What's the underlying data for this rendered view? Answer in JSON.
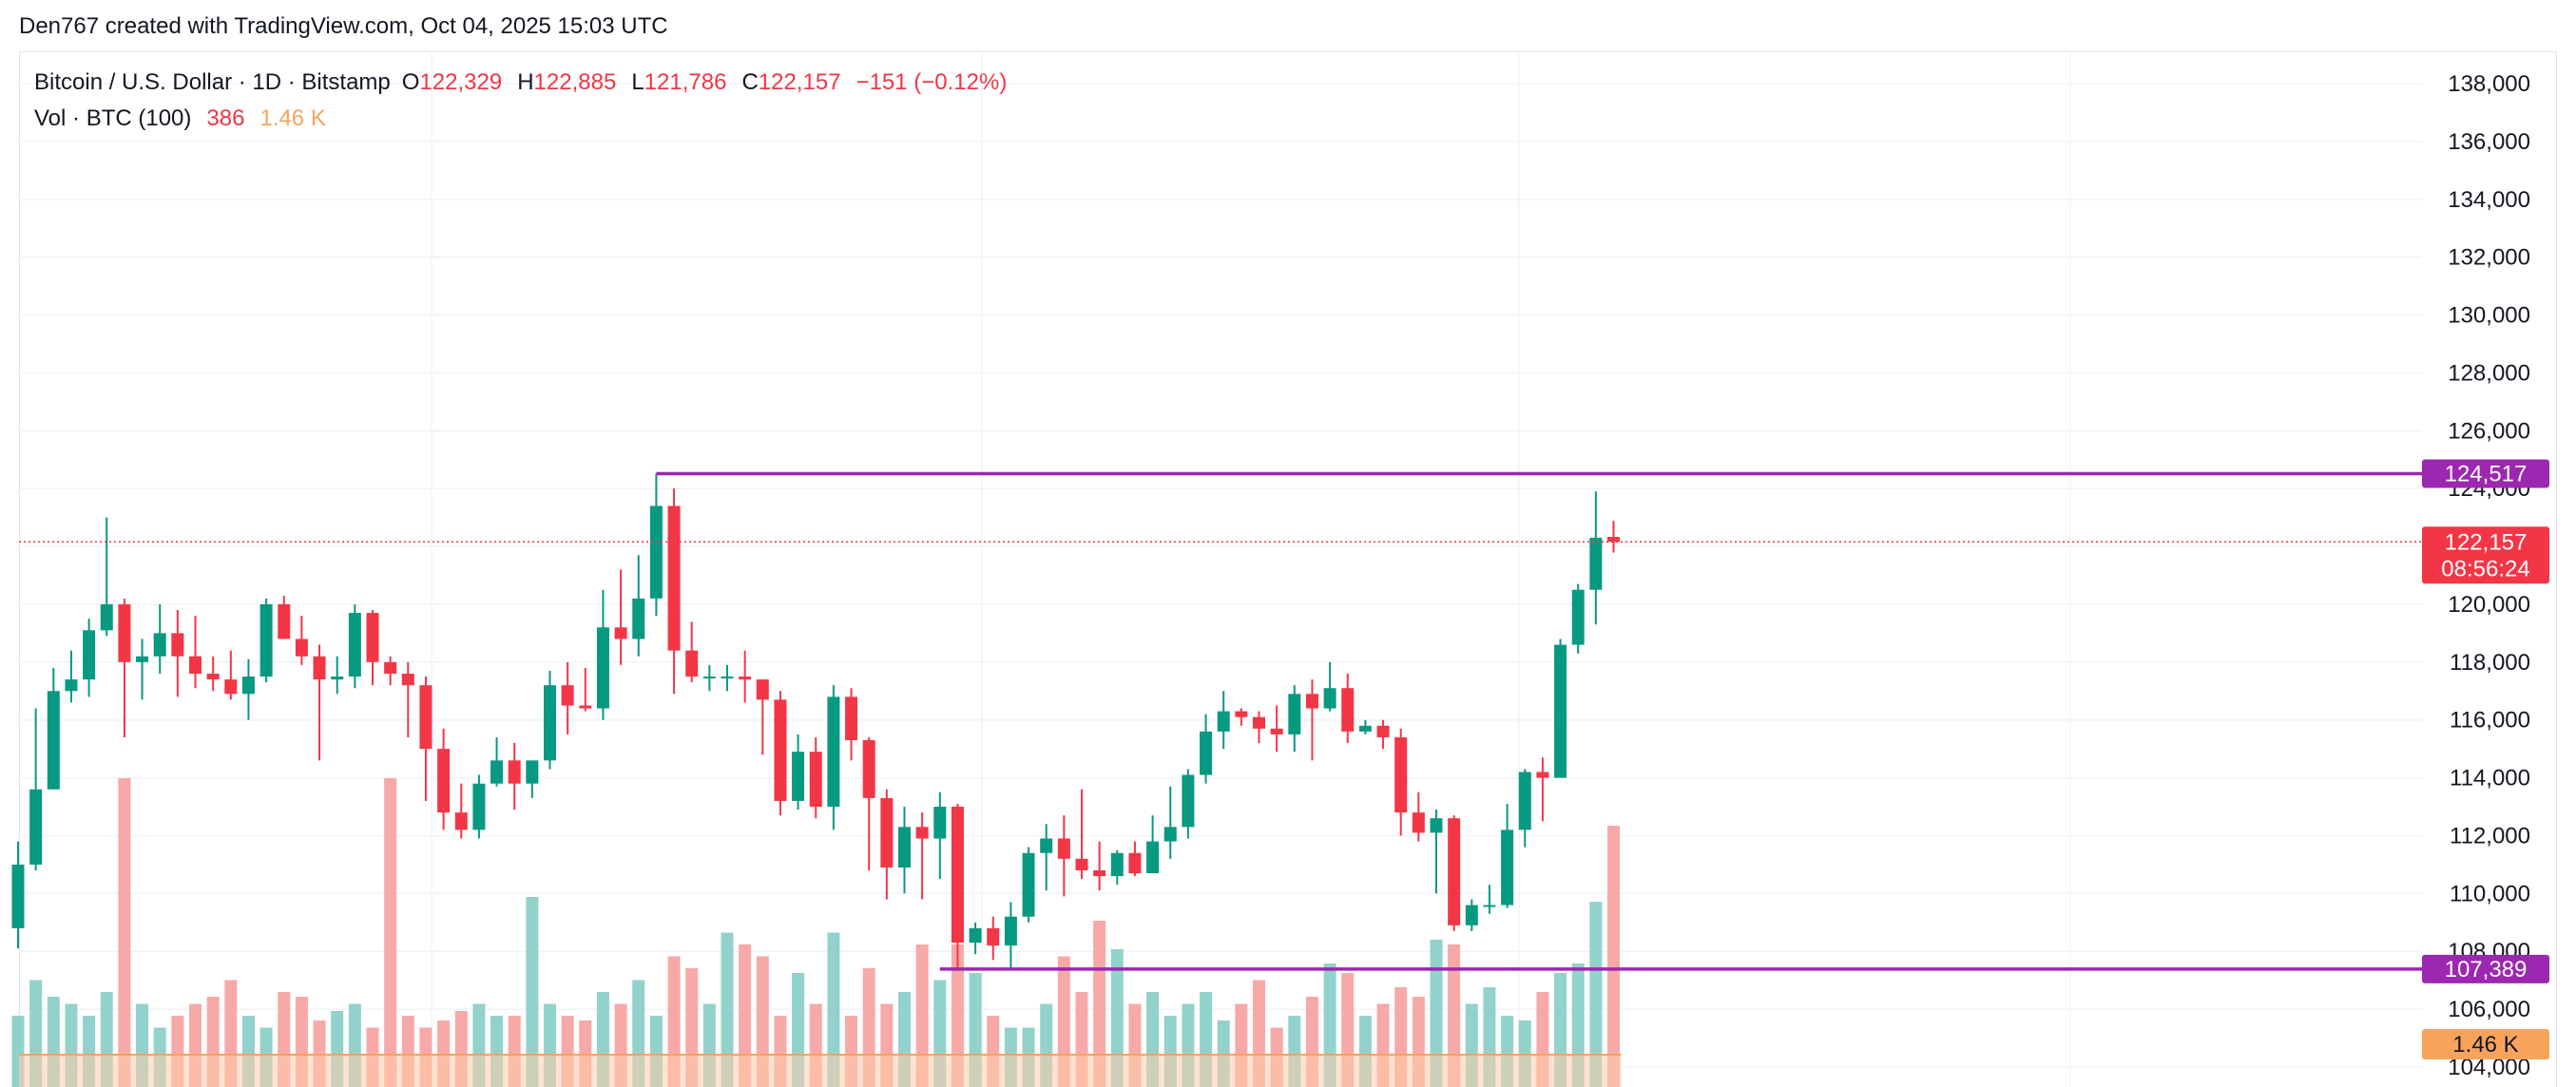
{
  "attribution": "Den767 created with TradingView.com, Oct 04, 2025 15:03 UTC",
  "legend": {
    "symbol": "Bitcoin / U.S. Dollar · 1D · Bitstamp",
    "o_label": "O",
    "o_value": "122,329",
    "h_label": "H",
    "h_value": "122,885",
    "l_label": "L",
    "l_value": "121,786",
    "c_label": "C",
    "c_value": "122,157",
    "change": "−151 (−0.12%)",
    "vol_label": "Vol · BTC (100)",
    "vol_value": "386",
    "vol_ma_value": "1.46 K"
  },
  "badges": {
    "level_high": "124,517",
    "level_low": "107,389",
    "last_price": "122,157",
    "countdown": "08:56:24",
    "vol_ma": "1.46 K"
  },
  "colors": {
    "up": "#089981",
    "down": "#f23645",
    "vol_up": "#92d2cc",
    "vol_down": "#f7a9a7",
    "vol_ma_fill": "#ffccaa",
    "vol_ma_line": "#f7a35c",
    "level_line": "#9c27b0",
    "grid": "#f0f3fa",
    "text": "#131722"
  },
  "chart_data": {
    "type": "candlestick",
    "title": "Bitcoin / U.S. Dollar · 1D · Bitstamp",
    "y_axis_ticks": [
      "104,000",
      "106,000",
      "108,000",
      "110,000",
      "112,000",
      "114,000",
      "116,000",
      "118,000",
      "120,000",
      "122,000",
      "124,000",
      "126,000",
      "128,000",
      "130,000",
      "132,000",
      "134,000",
      "136,000",
      "138,000"
    ],
    "ylim": [
      103000,
      139000
    ],
    "levels": [
      {
        "label": "124,517",
        "value": 124517,
        "start_index": 36
      },
      {
        "label": "107,389",
        "value": 107389,
        "start_index": 52
      }
    ],
    "last_price": 122157,
    "candles": [
      [
        108800,
        111800,
        108100,
        111000
      ],
      [
        111000,
        116400,
        110800,
        113600
      ],
      [
        113600,
        117800,
        113600,
        117000
      ],
      [
        117000,
        118400,
        116600,
        117400
      ],
      [
        117400,
        119500,
        116800,
        119100
      ],
      [
        119100,
        123000,
        118900,
        120000
      ],
      [
        120000,
        120200,
        115400,
        118000
      ],
      [
        118000,
        118800,
        116700,
        118200
      ],
      [
        118200,
        120000,
        117600,
        119000
      ],
      [
        119000,
        119800,
        116800,
        118200
      ],
      [
        118200,
        119600,
        117100,
        117600
      ],
      [
        117600,
        118200,
        117000,
        117400
      ],
      [
        117400,
        118400,
        116700,
        116900
      ],
      [
        116900,
        118100,
        116000,
        117500
      ],
      [
        117500,
        120200,
        117300,
        120000
      ],
      [
        120000,
        120300,
        118800,
        118800
      ],
      [
        118800,
        119600,
        117900,
        118200
      ],
      [
        118200,
        118600,
        114600,
        117400
      ],
      [
        117400,
        118200,
        116900,
        117500
      ],
      [
        117500,
        120000,
        117100,
        119700
      ],
      [
        119700,
        119800,
        117200,
        118000
      ],
      [
        118000,
        118200,
        117200,
        117600
      ],
      [
        117600,
        118000,
        115400,
        117200
      ],
      [
        117200,
        117500,
        113200,
        115000
      ],
      [
        115000,
        115700,
        112200,
        112800
      ],
      [
        112800,
        113800,
        111900,
        112200
      ],
      [
        112200,
        114100,
        111900,
        113800
      ],
      [
        113800,
        115400,
        113700,
        114600
      ],
      [
        114600,
        115200,
        112900,
        113800
      ],
      [
        113800,
        114600,
        113300,
        114600
      ],
      [
        114600,
        117700,
        114300,
        117200
      ],
      [
        117200,
        118000,
        115500,
        116500
      ],
      [
        116500,
        117800,
        116300,
        116400
      ],
      [
        116400,
        120500,
        116000,
        119200
      ],
      [
        119200,
        121200,
        117900,
        118800
      ],
      [
        118800,
        121700,
        118200,
        120200
      ],
      [
        120200,
        124517,
        119600,
        123400
      ],
      [
        123400,
        124000,
        116900,
        118400
      ],
      [
        118400,
        119400,
        117300,
        117500
      ],
      [
        117500,
        117900,
        117000,
        117500
      ],
      [
        117500,
        117900,
        117000,
        117500
      ],
      [
        117500,
        118400,
        116600,
        117400
      ],
      [
        117400,
        117400,
        114800,
        116700
      ],
      [
        116700,
        117000,
        112700,
        113200
      ],
      [
        113200,
        115500,
        112900,
        114900
      ],
      [
        114900,
        115400,
        112600,
        113000
      ],
      [
        113000,
        117200,
        112200,
        116800
      ],
      [
        116800,
        117100,
        114600,
        115300
      ],
      [
        115300,
        115400,
        110800,
        113300
      ],
      [
        113300,
        113600,
        109800,
        110900
      ],
      [
        110900,
        113000,
        110000,
        112300
      ],
      [
        112300,
        112800,
        109800,
        111900
      ],
      [
        111900,
        113500,
        110500,
        113000
      ],
      [
        113000,
        113100,
        107389,
        108300
      ],
      [
        108300,
        109000,
        107900,
        108800
      ],
      [
        108800,
        109200,
        107700,
        108200
      ],
      [
        108200,
        109700,
        107400,
        109200
      ],
      [
        109200,
        111600,
        109000,
        111400
      ],
      [
        111400,
        112400,
        110100,
        111900
      ],
      [
        111900,
        112700,
        109900,
        111200
      ],
      [
        111200,
        113600,
        110500,
        110800
      ],
      [
        110800,
        111800,
        110100,
        110600
      ],
      [
        110600,
        111500,
        110300,
        111400
      ],
      [
        111400,
        111800,
        110600,
        110700
      ],
      [
        110700,
        112700,
        110700,
        111800
      ],
      [
        111800,
        113700,
        111200,
        112300
      ],
      [
        112300,
        114300,
        111900,
        114100
      ],
      [
        114100,
        116200,
        113800,
        115600
      ],
      [
        115600,
        117000,
        115000,
        116300
      ],
      [
        116300,
        116400,
        115800,
        116100
      ],
      [
        116100,
        116300,
        115200,
        115700
      ],
      [
        115700,
        116500,
        114900,
        115500
      ],
      [
        115500,
        117200,
        114900,
        116900
      ],
      [
        116900,
        117400,
        114600,
        116400
      ],
      [
        116400,
        118000,
        116300,
        117100
      ],
      [
        117100,
        117600,
        115200,
        115600
      ],
      [
        115600,
        116000,
        115500,
        115800
      ],
      [
        115800,
        116000,
        115000,
        115400
      ],
      [
        115400,
        115700,
        112000,
        112800
      ],
      [
        112800,
        113500,
        111800,
        112100
      ],
      [
        112100,
        112900,
        110000,
        112600
      ],
      [
        112600,
        112700,
        108700,
        108900
      ],
      [
        108900,
        109800,
        108700,
        109600
      ],
      [
        109600,
        110300,
        109300,
        109600
      ],
      [
        109600,
        113100,
        109500,
        112200
      ],
      [
        112200,
        114300,
        111600,
        114200
      ],
      [
        114200,
        114700,
        112500,
        114000
      ],
      [
        114000,
        118800,
        114000,
        118600
      ],
      [
        118600,
        120700,
        118300,
        120500
      ],
      [
        120500,
        123900,
        119300,
        122300
      ],
      [
        122329,
        122885,
        121786,
        122157
      ]
    ],
    "volume": [
      30,
      45,
      38,
      35,
      30,
      40,
      130,
      35,
      25,
      30,
      35,
      38,
      45,
      30,
      25,
      40,
      38,
      28,
      32,
      35,
      25,
      130,
      30,
      25,
      28,
      32,
      35,
      30,
      30,
      80,
      35,
      30,
      28,
      40,
      35,
      45,
      30,
      55,
      50,
      35,
      65,
      60,
      55,
      30,
      48,
      35,
      65,
      30,
      50,
      35,
      40,
      60,
      45,
      60,
      48,
      30,
      25,
      25,
      35,
      55,
      40,
      70,
      58,
      35,
      40,
      30,
      35,
      40,
      28,
      35,
      45,
      25,
      30,
      38,
      52,
      48,
      30,
      35,
      42,
      38,
      62,
      60,
      35,
      42,
      30,
      28,
      40,
      48,
      52,
      78,
      110
    ],
    "volume_ma": 1460
  }
}
